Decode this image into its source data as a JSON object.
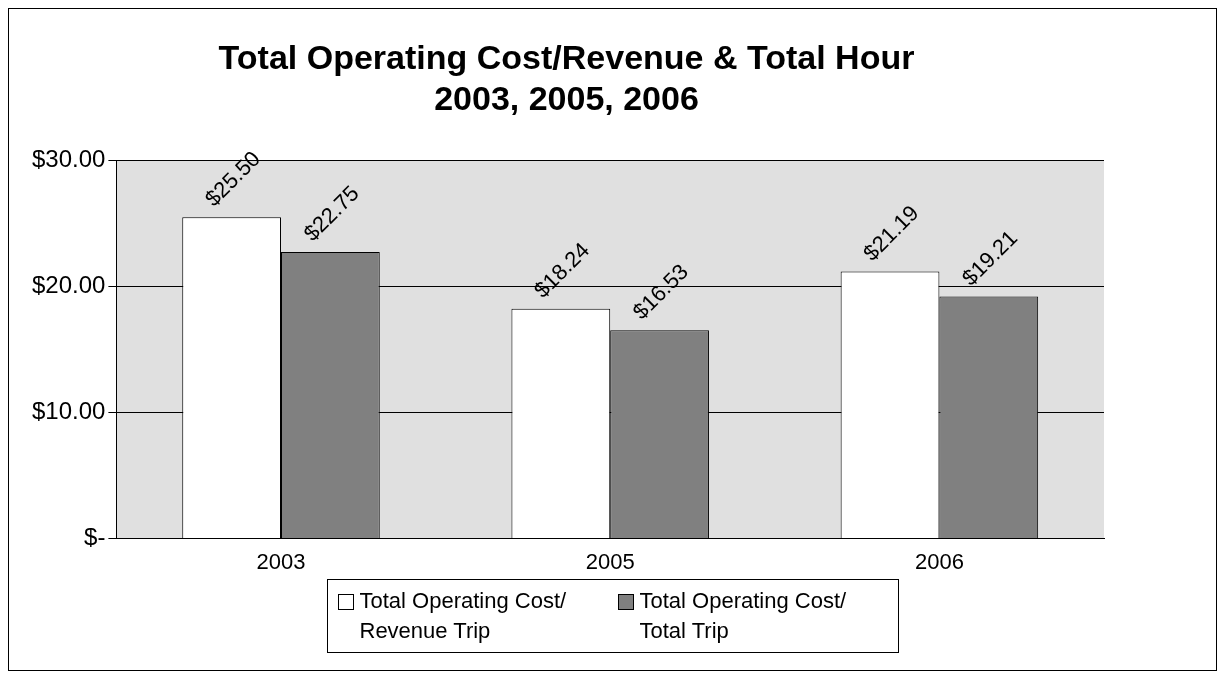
{
  "chart_data": {
    "type": "bar",
    "title": "Total Operating Cost/Revenue & Total Hour",
    "subtitle": "2003, 2005, 2006",
    "categories": [
      "2003",
      "2005",
      "2006"
    ],
    "series": [
      {
        "name": "Total Operating Cost/ Revenue Trip",
        "color": "#ffffff",
        "values": [
          25.5,
          18.24,
          21.19
        ],
        "value_labels": [
          "$25.50",
          "$18.24",
          "$21.19"
        ]
      },
      {
        "name": "Total Operating Cost/ Total Trip",
        "color": "#808080",
        "values": [
          22.75,
          16.53,
          19.21
        ],
        "value_labels": [
          "$22.75",
          "$16.53",
          "$19.21"
        ]
      }
    ],
    "ylim": [
      0,
      30
    ],
    "yticks": [
      {
        "value": 0,
        "label": "$-"
      },
      {
        "value": 10,
        "label": "$10.00"
      },
      {
        "value": 20,
        "label": "$20.00"
      },
      {
        "value": 30,
        "label": "$30.00"
      }
    ],
    "grid": "y",
    "legend": "bottom"
  }
}
